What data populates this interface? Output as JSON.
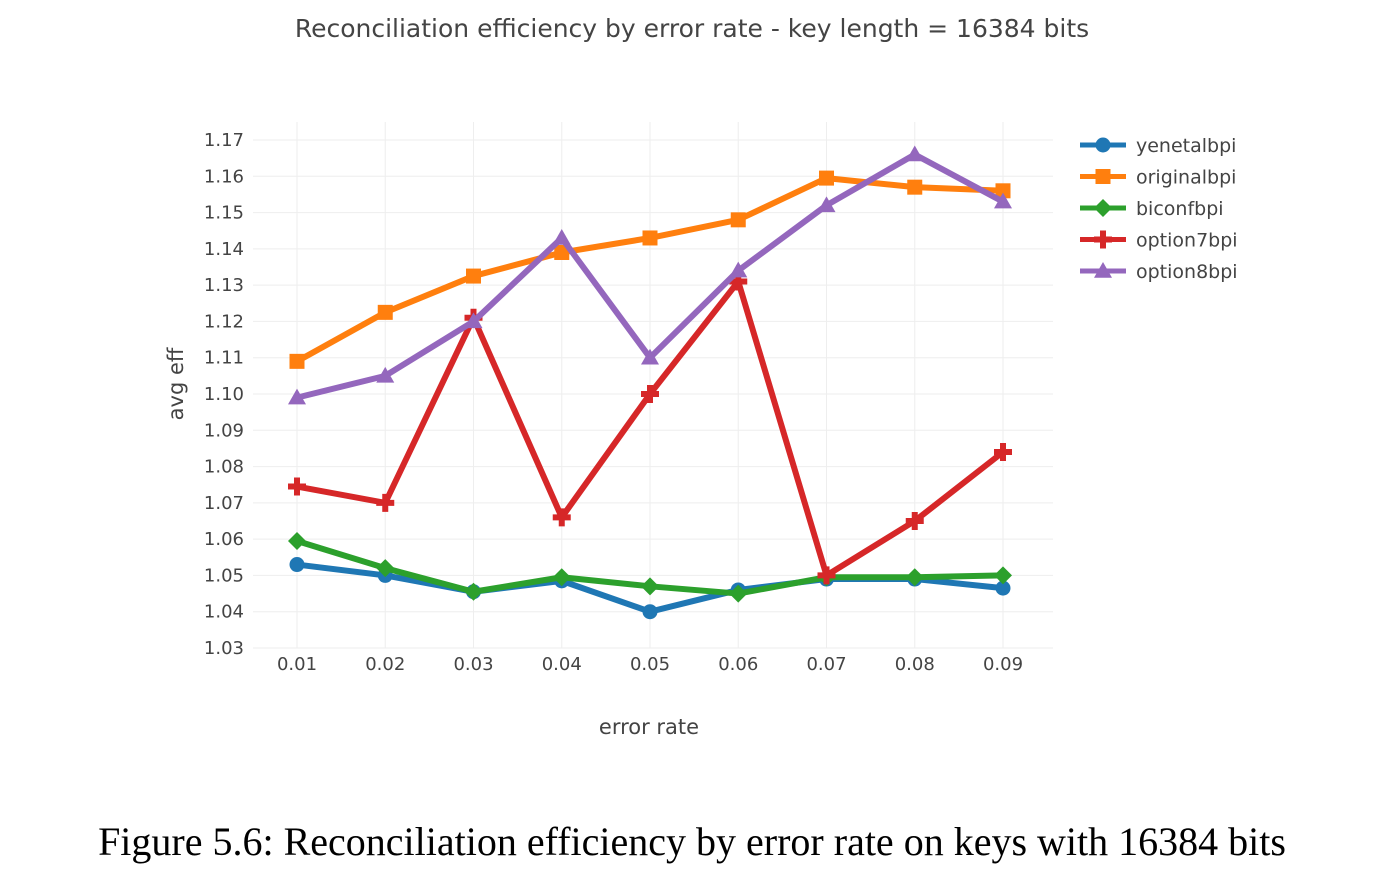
{
  "chart_data": {
    "type": "line",
    "title": "Reconciliation efficiency by error rate - key length = 16384 bits",
    "xlabel": "error rate",
    "ylabel": "avg eff",
    "x": [
      0.01,
      0.02,
      0.03,
      0.04,
      0.05,
      0.06,
      0.07,
      0.08,
      0.09
    ],
    "x_tick_labels": [
      "0.01",
      "0.02",
      "0.03",
      "0.04",
      "0.05",
      "0.06",
      "0.07",
      "0.08",
      "0.09"
    ],
    "ylim": [
      1.03,
      1.17
    ],
    "y_tick_labels": [
      "1.03",
      "1.04",
      "1.05",
      "1.06",
      "1.07",
      "1.08",
      "1.09",
      "1.10",
      "1.11",
      "1.12",
      "1.13",
      "1.14",
      "1.15",
      "1.16",
      "1.17"
    ],
    "grid": true,
    "legend": "top-right",
    "series": [
      {
        "name": "yenetalbpi",
        "color": "#1f77b4",
        "marker": "circle",
        "values": [
          1.053,
          1.05,
          1.0455,
          1.0485,
          1.04,
          1.046,
          1.049,
          1.049,
          1.0465
        ]
      },
      {
        "name": "originalbpi",
        "color": "#ff7f0e",
        "marker": "square",
        "values": [
          1.109,
          1.1225,
          1.1325,
          1.139,
          1.143,
          1.148,
          1.1595,
          1.157,
          1.156
        ]
      },
      {
        "name": "biconfbpi",
        "color": "#2ca02c",
        "marker": "diamond",
        "values": [
          1.0595,
          1.052,
          1.0455,
          1.0495,
          1.047,
          1.045,
          1.0495,
          1.0495,
          1.05
        ]
      },
      {
        "name": "option7bpi",
        "color": "#d62728",
        "marker": "cross",
        "values": [
          1.0745,
          1.07,
          1.121,
          1.066,
          1.1,
          1.131,
          1.05,
          1.065,
          1.084
        ]
      },
      {
        "name": "option8bpi",
        "color": "#9467bd",
        "marker": "triangle",
        "values": [
          1.099,
          1.105,
          1.12,
          1.143,
          1.11,
          1.134,
          1.152,
          1.166,
          1.153
        ]
      }
    ]
  },
  "caption": "Figure 5.6: Reconciliation efficiency by error rate on keys with 16384 bits"
}
